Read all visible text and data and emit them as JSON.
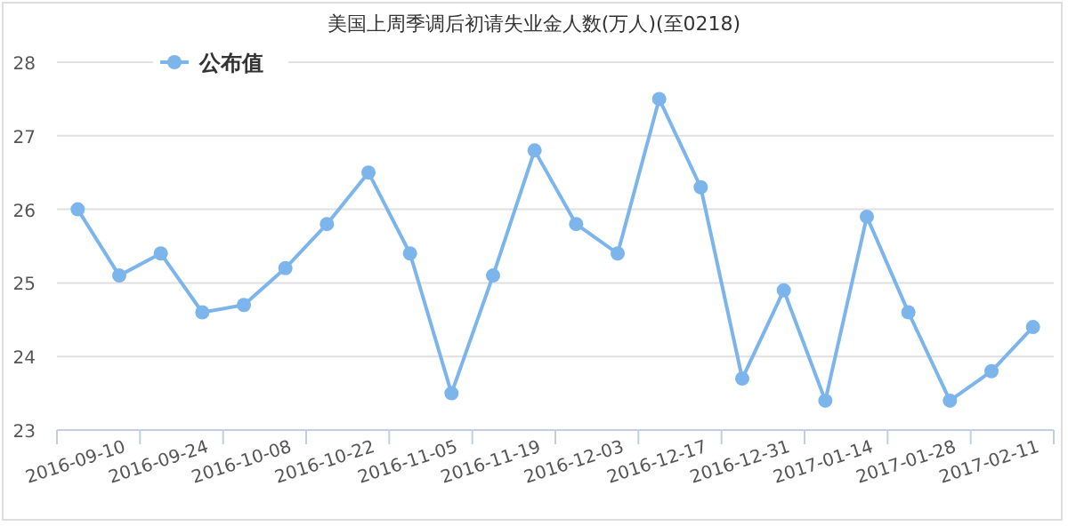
{
  "chart_data": {
    "type": "line",
    "title": "美国上周季调后初请失业金人数(万人)(至0218)",
    "categories": [
      null,
      "2016-09-10",
      null,
      "2016-09-24",
      null,
      "2016-10-08",
      null,
      "2016-10-22",
      null,
      "2016-11-05",
      null,
      "2016-11-19",
      null,
      "2016-12-03",
      null,
      "2016-12-17",
      null,
      "2016-12-31",
      null,
      "2017-01-14",
      null,
      "2017-01-28",
      null,
      "2017-02-11"
    ],
    "series": [
      {
        "name": "公布值",
        "color": "#7cb5ec",
        "values": [
          26.0,
          25.1,
          25.4,
          24.6,
          24.7,
          25.2,
          25.8,
          26.5,
          25.4,
          23.5,
          25.1,
          26.8,
          25.8,
          25.4,
          27.5,
          26.3,
          23.7,
          24.9,
          23.4,
          25.9,
          24.6,
          23.4,
          23.8,
          24.4
        ]
      }
    ],
    "ylim": [
      23,
      28
    ],
    "yticks": [
      23,
      24,
      25,
      26,
      27,
      28
    ],
    "grid": "y",
    "legend": "top left",
    "marker": "circle",
    "line_style": "solid"
  }
}
